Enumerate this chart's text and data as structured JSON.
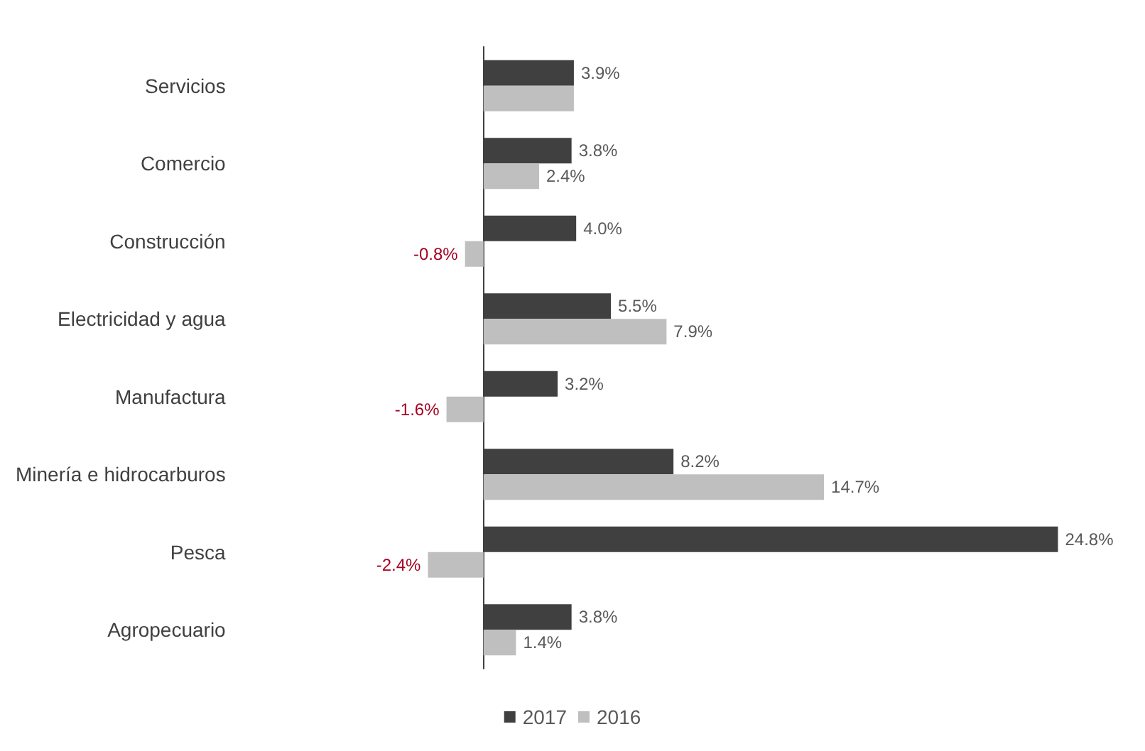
{
  "chart_data": {
    "type": "bar",
    "orientation": "horizontal",
    "categories": [
      "Servicios",
      "Comercio",
      "Construcción",
      "Electricidad y agua",
      "Manufactura",
      "Minería e hidrocarburos",
      "Pesca",
      "Agropecuario"
    ],
    "series": [
      {
        "name": "2017",
        "color": "#404040",
        "values": [
          3.9,
          3.8,
          4.0,
          5.5,
          3.2,
          8.2,
          24.8,
          3.8
        ],
        "value_labels": [
          "3.9%",
          "3.8%",
          "4.0%",
          "5.5%",
          "3.2%",
          "8.2%",
          "24.8%",
          "3.8%"
        ]
      },
      {
        "name": "2016",
        "color": "#bfbfbf",
        "values": [
          3.9,
          2.4,
          -0.8,
          7.9,
          -1.6,
          14.7,
          -2.4,
          1.4
        ],
        "value_labels": [
          null,
          "2.4%",
          "-0.8%",
          "7.9%",
          "-1.6%",
          "14.7%",
          "-2.4%",
          "1.4%"
        ]
      }
    ],
    "legend": "bottom"
  }
}
